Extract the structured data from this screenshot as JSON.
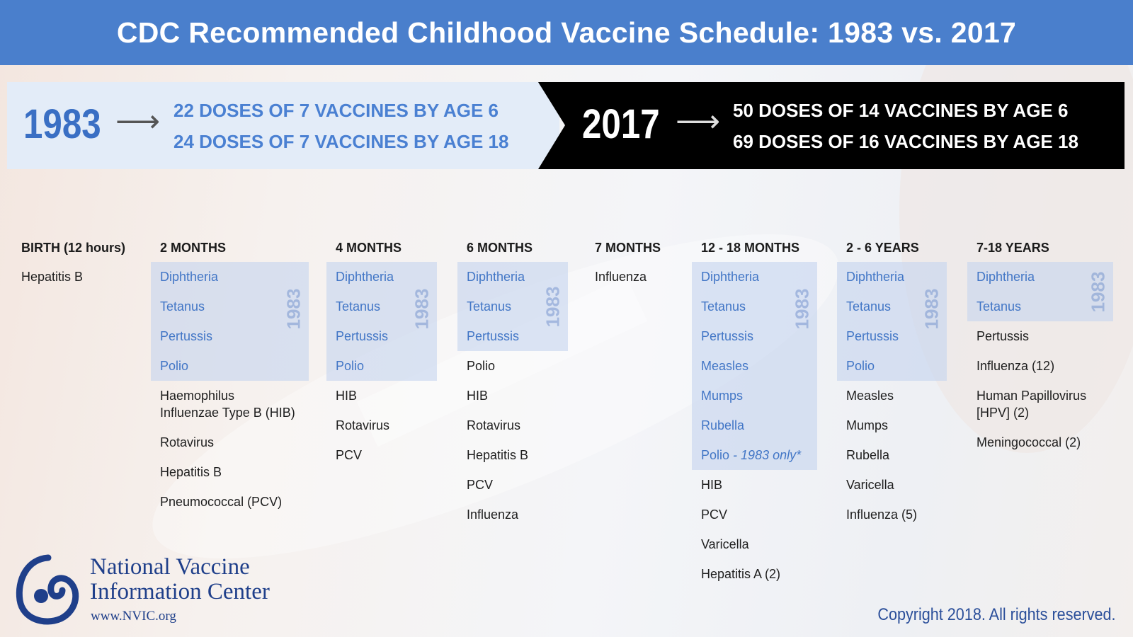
{
  "header": {
    "title": "CDC Recommended Childhood Vaccine Schedule: 1983 vs. 2017"
  },
  "banner": {
    "left": {
      "year": "1983",
      "lines": [
        "22 DOSES OF 7 VACCINES BY AGE 6",
        "24 DOSES OF 7 VACCINES BY AGE 18"
      ]
    },
    "right": {
      "year": "2017",
      "lines": [
        "50 DOSES OF 14 VACCINES BY AGE 6",
        "69 DOSES OF 16 VACCINES BY AGE 18"
      ]
    }
  },
  "shaded_label": "1983",
  "columns": [
    {
      "heading": "BIRTH (12 hours)",
      "shaded": [],
      "items": [
        "Hepatitis B"
      ]
    },
    {
      "heading": "2 MONTHS",
      "shaded": [
        "Diphtheria",
        "Tetanus",
        "Pertussis",
        "Polio"
      ],
      "items": [
        {
          "lines": [
            "Haemophilus",
            "Influenzae Type B (HIB)"
          ]
        },
        "Rotavirus",
        "Hepatitis B",
        "Pneumococcal (PCV)"
      ]
    },
    {
      "heading": "4 MONTHS",
      "shaded": [
        "Diphtheria",
        "Tetanus",
        "Pertussis",
        "Polio"
      ],
      "items": [
        "HIB",
        "Rotavirus",
        "PCV"
      ]
    },
    {
      "heading": "6 MONTHS",
      "shaded": [
        "Diphtheria",
        "Tetanus",
        "Pertussis"
      ],
      "items": [
        "Polio",
        "HIB",
        "Rotavirus",
        "Hepatitis B",
        "PCV",
        "Influenza"
      ]
    },
    {
      "heading": "7 MONTHS",
      "shaded": [],
      "items": [
        "Influenza"
      ]
    },
    {
      "heading": "12 - 18 MONTHS",
      "shaded": [
        "Diphtheria",
        "Tetanus",
        "Pertussis",
        "Measles",
        "Mumps",
        "Rubella",
        {
          "name": "Polio",
          "note": "- 1983 only*"
        }
      ],
      "items": [
        "HIB",
        "PCV",
        "Varicella",
        "Hepatitis A (2)"
      ]
    },
    {
      "heading": "2 - 6 YEARS",
      "shaded": [
        "Diphtheria",
        "Tetanus",
        "Pertussis",
        "Polio"
      ],
      "items": [
        "Measles",
        "Mumps",
        "Rubella",
        "Varicella",
        "Influenza (5)"
      ]
    },
    {
      "heading": "7-18 YEARS",
      "shaded": [
        "Diphtheria",
        "Tetanus"
      ],
      "items": [
        "Pertussis",
        "Influenza (12)",
        {
          "lines": [
            "Human Papillovirus",
            "[HPV] (2)"
          ]
        },
        "Meningococcal (2)"
      ]
    }
  ],
  "footer": {
    "org_lines": [
      "National Vaccine",
      "Information Center"
    ],
    "url": "www.NVIC.org",
    "copyright": "Copyright 2018. All rights reserved."
  }
}
